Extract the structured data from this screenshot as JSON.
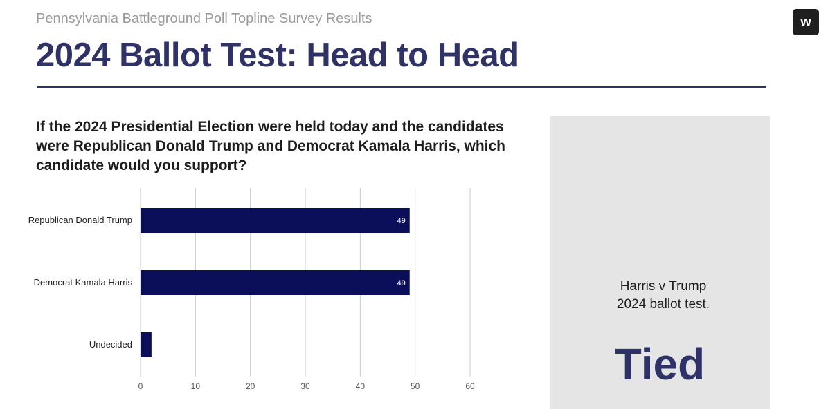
{
  "header": {
    "subtitle": "Pennsylvania Battleground Poll Topline Survey Results",
    "title": "2024 Ballot Test: Head to Head",
    "logo_letter": "w"
  },
  "question": "If the 2024 Presidential Election were held today and the candidates were Republican Donald Trump and Democrat Kamala Harris, which candidate would you support?",
  "callout": {
    "headline": "Tied",
    "line1": "Harris v Trump",
    "line2": "2024 ballot test."
  },
  "colors": {
    "bar": "#0b0f5a",
    "title": "#2e3266",
    "grid": "#c8c8c8",
    "panel": "#e5e5e5"
  },
  "chart_data": {
    "type": "bar",
    "orientation": "horizontal",
    "categories": [
      "Republican Donald Trump",
      "Democrat Kamala Harris",
      "Undecided"
    ],
    "values": [
      49,
      49,
      2
    ],
    "data_labels": [
      "49",
      "49",
      ""
    ],
    "xlim": [
      0,
      60
    ],
    "xticks": [
      "0",
      "10",
      "20",
      "30",
      "40",
      "50",
      "60"
    ],
    "grid": true,
    "title": "",
    "xlabel": "",
    "ylabel": ""
  }
}
